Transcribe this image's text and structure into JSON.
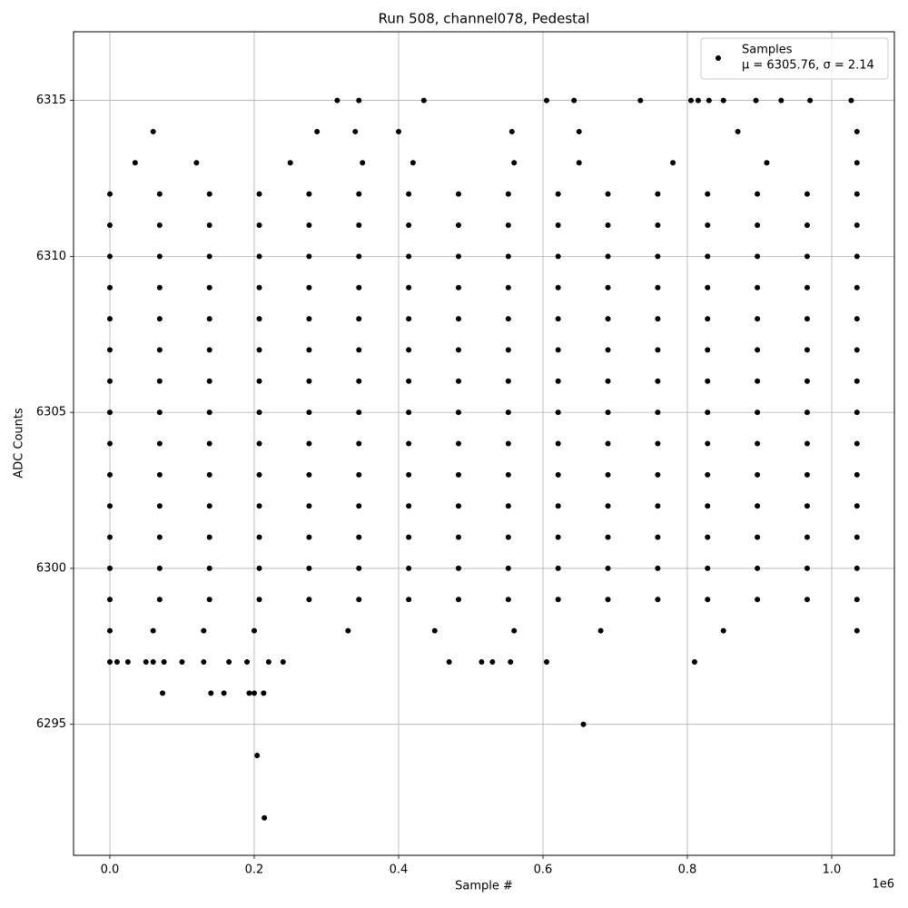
{
  "chart_data": {
    "type": "scatter",
    "title": "Run 508, channel078, Pedestal",
    "x_label": "Sample #",
    "y_label": "ADC Counts",
    "x_offset_label": "1e6",
    "legend_position": "upper right",
    "legend_note": "μ = 6305.76, σ = 2.14",
    "grid": true,
    "xlim": [
      -50300,
      1086800
    ],
    "xticks": [
      {
        "value": 0,
        "label": "0.0"
      },
      {
        "value": 200000,
        "label": "0.2"
      },
      {
        "value": 400000,
        "label": "0.4"
      },
      {
        "value": 600000,
        "label": "0.6"
      },
      {
        "value": 800000,
        "label": "0.8"
      },
      {
        "value": 1000000,
        "label": "1.0"
      }
    ],
    "ylim": [
      6290.8,
      6317.2
    ],
    "yticks": [
      6295,
      6300,
      6305,
      6310,
      6315
    ],
    "series": [
      {
        "name": "Samples",
        "color": "#000000",
        "x": [
          0,
          69000,
          138000,
          207000,
          276000,
          345000,
          414000,
          483000,
          552000,
          621000,
          690000,
          759000,
          828000,
          897000,
          966000,
          1035000,
          0,
          69000,
          138000,
          207000,
          276000,
          345000,
          414000,
          483000,
          552000,
          621000,
          690000,
          759000,
          828000,
          897000,
          966000,
          1035000,
          0,
          69000,
          138000,
          207000,
          276000,
          345000,
          414000,
          483000,
          552000,
          621000,
          690000,
          759000,
          828000,
          897000,
          966000,
          1035000,
          0,
          69000,
          138000,
          207000,
          276000,
          345000,
          414000,
          483000,
          552000,
          621000,
          690000,
          759000,
          828000,
          897000,
          966000,
          1035000,
          0,
          69000,
          138000,
          207000,
          276000,
          345000,
          414000,
          483000,
          552000,
          621000,
          690000,
          759000,
          828000,
          897000,
          966000,
          1035000,
          0,
          69000,
          138000,
          207000,
          276000,
          345000,
          414000,
          483000,
          552000,
          621000,
          690000,
          759000,
          828000,
          897000,
          966000,
          1035000,
          0,
          69000,
          138000,
          207000,
          276000,
          345000,
          414000,
          483000,
          552000,
          621000,
          690000,
          759000,
          828000,
          897000,
          966000,
          1035000,
          0,
          69000,
          138000,
          207000,
          276000,
          345000,
          414000,
          483000,
          552000,
          621000,
          690000,
          759000,
          828000,
          897000,
          966000,
          1035000,
          0,
          69000,
          138000,
          207000,
          276000,
          345000,
          414000,
          483000,
          552000,
          621000,
          690000,
          759000,
          828000,
          897000,
          966000,
          1035000,
          0,
          69000,
          138000,
          207000,
          276000,
          345000,
          414000,
          483000,
          552000,
          621000,
          690000,
          759000,
          828000,
          897000,
          966000,
          1035000,
          0,
          69000,
          138000,
          207000,
          276000,
          345000,
          414000,
          483000,
          552000,
          621000,
          690000,
          759000,
          828000,
          897000,
          966000,
          1035000,
          0,
          69000,
          138000,
          207000,
          276000,
          345000,
          414000,
          483000,
          552000,
          621000,
          690000,
          759000,
          828000,
          897000,
          966000,
          1035000,
          0,
          69000,
          138000,
          207000,
          276000,
          345000,
          414000,
          483000,
          552000,
          621000,
          690000,
          759000,
          828000,
          897000,
          966000,
          1035000,
          0,
          69000,
          138000,
          207000,
          276000,
          345000,
          414000,
          483000,
          552000,
          621000,
          690000,
          759000,
          828000,
          897000,
          966000,
          1035000,
          0,
          60000,
          130000,
          200000,
          330000,
          450000,
          560000,
          680000,
          850000,
          1035000,
          35000,
          120000,
          250000,
          350000,
          420000,
          560000,
          650000,
          780000,
          910000,
          1035000,
          60000,
          287000,
          340000,
          400000,
          557000,
          650000,
          870000,
          1035000,
          315000,
          345000,
          435000,
          605000,
          643000,
          735000,
          805000,
          815000,
          830000,
          850000,
          895000,
          930000,
          970000,
          1027000,
          0,
          10000,
          25000,
          50000,
          60000,
          75000,
          100000,
          130000,
          165000,
          190000,
          220000,
          240000,
          470000,
          515000,
          530000,
          555000,
          605000,
          810000,
          73000,
          140000,
          158000,
          193000,
          200000,
          213000,
          656000,
          204000,
          214000
        ],
        "y": [
          6299,
          6299,
          6299,
          6299,
          6299,
          6299,
          6299,
          6299,
          6299,
          6299,
          6299,
          6299,
          6299,
          6299,
          6299,
          6299,
          6300,
          6300,
          6300,
          6300,
          6300,
          6300,
          6300,
          6300,
          6300,
          6300,
          6300,
          6300,
          6300,
          6300,
          6300,
          6300,
          6301,
          6301,
          6301,
          6301,
          6301,
          6301,
          6301,
          6301,
          6301,
          6301,
          6301,
          6301,
          6301,
          6301,
          6301,
          6301,
          6302,
          6302,
          6302,
          6302,
          6302,
          6302,
          6302,
          6302,
          6302,
          6302,
          6302,
          6302,
          6302,
          6302,
          6302,
          6302,
          6303,
          6303,
          6303,
          6303,
          6303,
          6303,
          6303,
          6303,
          6303,
          6303,
          6303,
          6303,
          6303,
          6303,
          6303,
          6303,
          6304,
          6304,
          6304,
          6304,
          6304,
          6304,
          6304,
          6304,
          6304,
          6304,
          6304,
          6304,
          6304,
          6304,
          6304,
          6304,
          6305,
          6305,
          6305,
          6305,
          6305,
          6305,
          6305,
          6305,
          6305,
          6305,
          6305,
          6305,
          6305,
          6305,
          6305,
          6305,
          6306,
          6306,
          6306,
          6306,
          6306,
          6306,
          6306,
          6306,
          6306,
          6306,
          6306,
          6306,
          6306,
          6306,
          6306,
          6306,
          6307,
          6307,
          6307,
          6307,
          6307,
          6307,
          6307,
          6307,
          6307,
          6307,
          6307,
          6307,
          6307,
          6307,
          6307,
          6307,
          6308,
          6308,
          6308,
          6308,
          6308,
          6308,
          6308,
          6308,
          6308,
          6308,
          6308,
          6308,
          6308,
          6308,
          6308,
          6308,
          6309,
          6309,
          6309,
          6309,
          6309,
          6309,
          6309,
          6309,
          6309,
          6309,
          6309,
          6309,
          6309,
          6309,
          6309,
          6309,
          6310,
          6310,
          6310,
          6310,
          6310,
          6310,
          6310,
          6310,
          6310,
          6310,
          6310,
          6310,
          6310,
          6310,
          6310,
          6310,
          6311,
          6311,
          6311,
          6311,
          6311,
          6311,
          6311,
          6311,
          6311,
          6311,
          6311,
          6311,
          6311,
          6311,
          6311,
          6311,
          6312,
          6312,
          6312,
          6312,
          6312,
          6312,
          6312,
          6312,
          6312,
          6312,
          6312,
          6312,
          6312,
          6312,
          6312,
          6312,
          6298,
          6298,
          6298,
          6298,
          6298,
          6298,
          6298,
          6298,
          6298,
          6298,
          6313,
          6313,
          6313,
          6313,
          6313,
          6313,
          6313,
          6313,
          6313,
          6313,
          6314,
          6314,
          6314,
          6314,
          6314,
          6314,
          6314,
          6314,
          6315,
          6315,
          6315,
          6315,
          6315,
          6315,
          6315,
          6315,
          6315,
          6315,
          6315,
          6315,
          6315,
          6315,
          6297,
          6297,
          6297,
          6297,
          6297,
          6297,
          6297,
          6297,
          6297,
          6297,
          6297,
          6297,
          6297,
          6297,
          6297,
          6297,
          6297,
          6297,
          6296,
          6296,
          6296,
          6296,
          6296,
          6296,
          6295,
          6294,
          6292
        ]
      }
    ]
  }
}
